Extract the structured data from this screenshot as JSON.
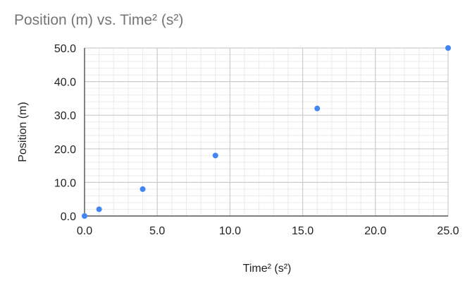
{
  "chart_data": {
    "type": "scatter",
    "title": "Position (m) vs. Time² (s²)",
    "xlabel": "Time² (s²)",
    "ylabel": "Position (m)",
    "xlim": [
      0,
      25
    ],
    "ylim": [
      0,
      50
    ],
    "x_ticks": [
      "0.0",
      "5.0",
      "10.0",
      "15.0",
      "20.0",
      "25.0"
    ],
    "y_ticks": [
      "0.0",
      "10.0",
      "20.0",
      "30.0",
      "40.0",
      "50.0"
    ],
    "grid": true,
    "legend": "none",
    "series": [
      {
        "color": "#4285f4",
        "points": [
          {
            "x": 0,
            "y": 0
          },
          {
            "x": 1,
            "y": 2
          },
          {
            "x": 4,
            "y": 8
          },
          {
            "x": 9,
            "y": 18
          },
          {
            "x": 16,
            "y": 32
          },
          {
            "x": 25,
            "y": 50
          }
        ]
      }
    ]
  }
}
